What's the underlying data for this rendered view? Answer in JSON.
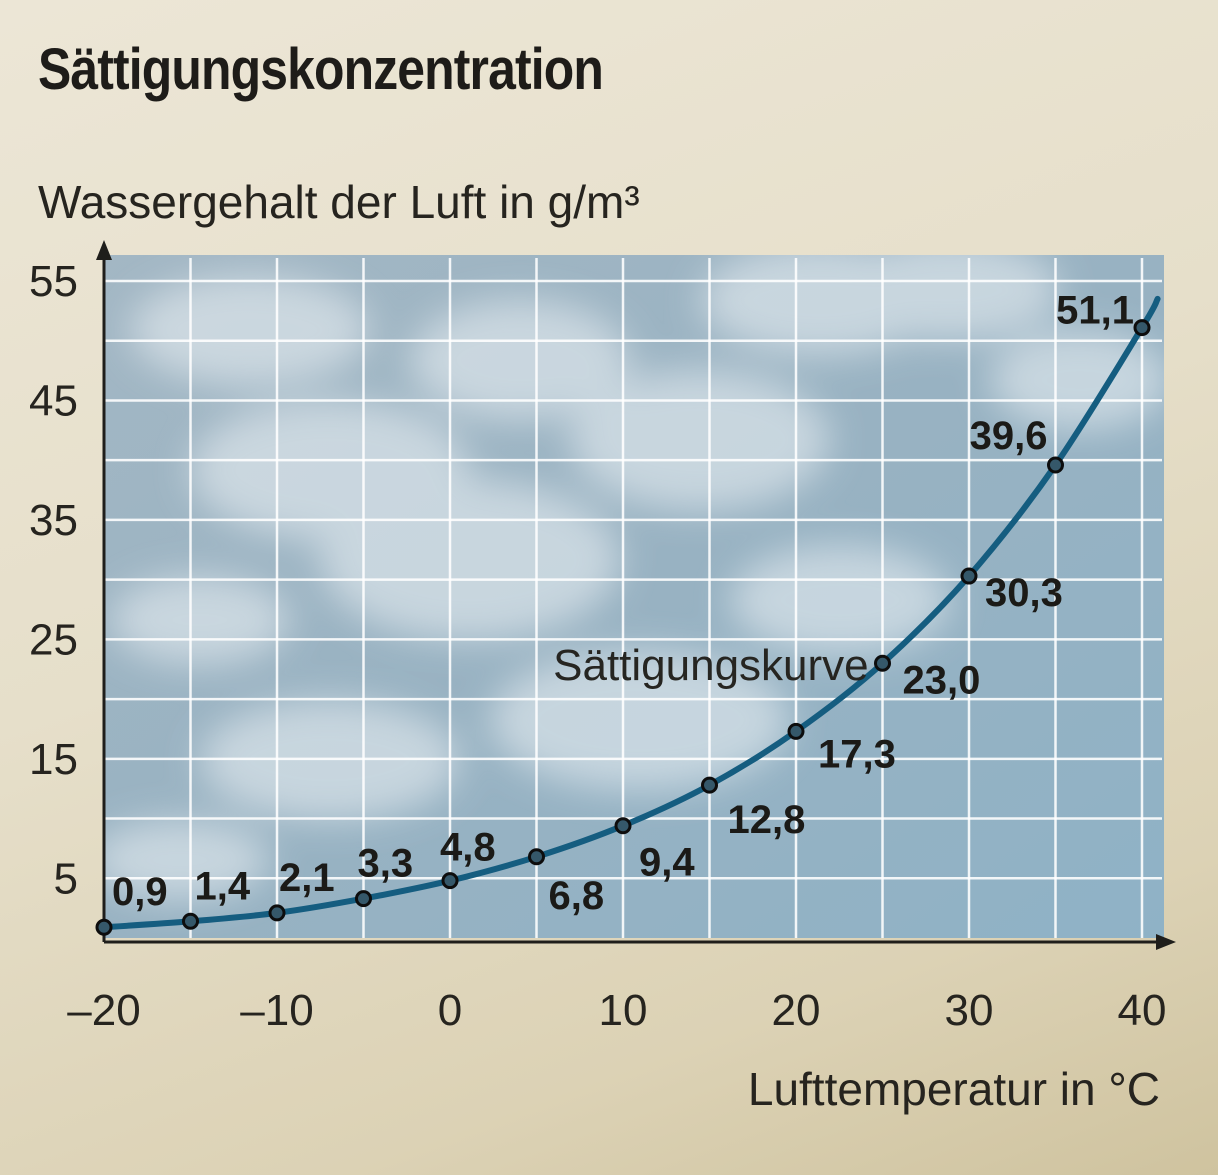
{
  "chart_data": {
    "type": "line",
    "title": "Sättigungskonzentration",
    "ylabel": "Wassergehalt der Luft in g/m³",
    "xlabel": "Lufttemperatur in °C",
    "series_label": "Sättigungskurve",
    "x": [
      -20,
      -15,
      -10,
      -5,
      0,
      5,
      10,
      15,
      20,
      25,
      30,
      35,
      40
    ],
    "y": [
      0.9,
      1.4,
      2.1,
      3.3,
      4.8,
      6.8,
      9.4,
      12.8,
      17.3,
      23.0,
      30.3,
      39.6,
      51.1
    ],
    "data_labels": [
      "0,9",
      "1,4",
      "2,1",
      "3,3",
      "4,8",
      "6,8",
      "9,4",
      "12,8",
      "17,3",
      "23,0",
      "30,3",
      "39,6",
      "51,1"
    ],
    "xticks": [
      -20,
      -10,
      0,
      10,
      20,
      30,
      40
    ],
    "xtick_labels": [
      "–20",
      "–10",
      "0",
      "10",
      "20",
      "30",
      "40"
    ],
    "yticks": [
      5,
      15,
      25,
      35,
      45,
      55
    ],
    "ytick_labels": [
      "5",
      "15",
      "25",
      "35",
      "45",
      "55"
    ],
    "xlim": [
      -20,
      40
    ],
    "ylim": [
      0,
      55
    ],
    "grid": true,
    "colors": {
      "curve": "#155d80",
      "background_sky": "#9fb6c6",
      "point_fill": "#35586a"
    }
  }
}
